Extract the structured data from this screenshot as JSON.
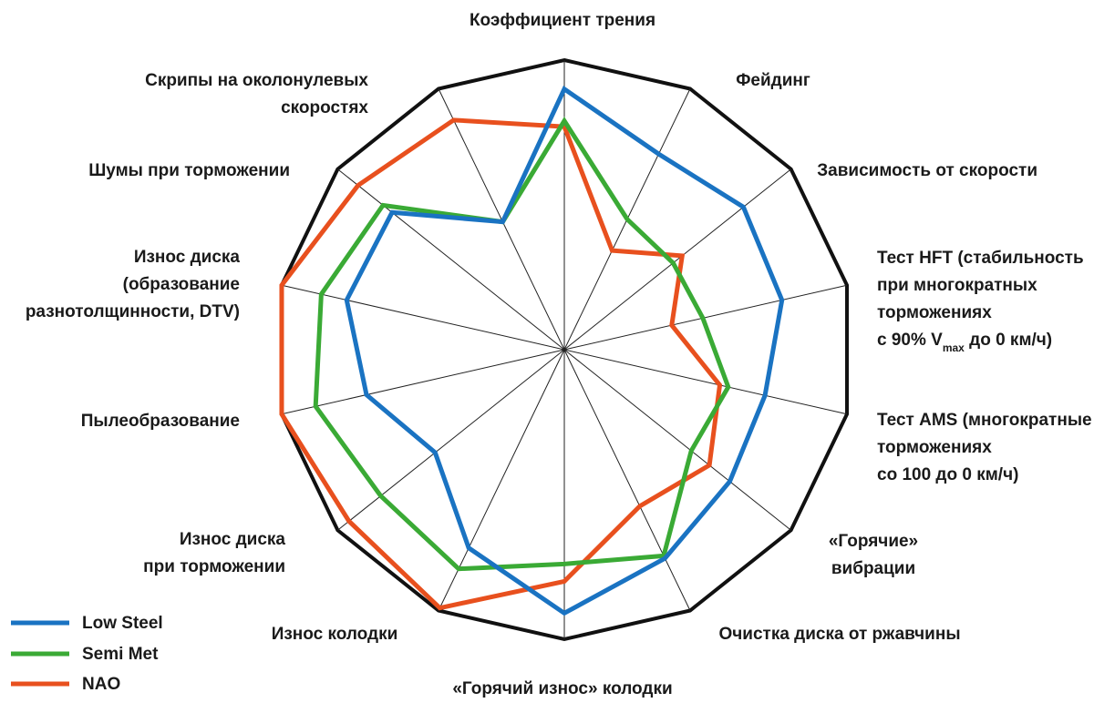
{
  "chart_data": {
    "type": "radar",
    "axes": [
      {
        "lines": [
          "Коэффициент трения"
        ]
      },
      {
        "lines": [
          "Фейдинг"
        ]
      },
      {
        "lines": [
          "Зависимость от скорости"
        ]
      },
      {
        "lines": [
          "Тест HFT (стабильность",
          "при многократных",
          "торможениях",
          "с 90% V|max| до 0 км/ч)"
        ]
      },
      {
        "lines": [
          "Тест AMS (многократные",
          "торможениях",
          "со 100 до 0 км/ч)"
        ]
      },
      {
        "lines": [
          "«Горячие»",
          "вибрации"
        ]
      },
      {
        "lines": [
          "Очистка диска от ржавчины"
        ]
      },
      {
        "lines": [
          "«Горячий износ» колодки"
        ]
      },
      {
        "lines": [
          "Износ колодки"
        ]
      },
      {
        "lines": [
          "Износ диска",
          "при торможении"
        ]
      },
      {
        "lines": [
          "Пылеобразование"
        ]
      },
      {
        "lines": [
          "Износ диска",
          "(образование",
          "разнотолщинности, DTV)"
        ]
      },
      {
        "lines": [
          "Шумы при торможении"
        ]
      },
      {
        "lines": [
          "Скрипы на околонулевых",
          "скоростях"
        ]
      }
    ],
    "series": [
      {
        "name": "Low Steel",
        "color": "#1a73c2",
        "values": [
          0.9,
          0.75,
          0.79,
          0.77,
          0.71,
          0.73,
          0.8,
          0.91,
          0.76,
          0.57,
          0.7,
          0.77,
          0.76,
          0.49
        ]
      },
      {
        "name": "Semi Met",
        "color": "#3aaa35",
        "values": [
          0.79,
          0.5,
          0.48,
          0.49,
          0.58,
          0.56,
          0.79,
          0.74,
          0.84,
          0.81,
          0.88,
          0.86,
          0.8,
          0.49
        ]
      },
      {
        "name": "NAO",
        "color": "#e8501e",
        "values": [
          0.77,
          0.38,
          0.52,
          0.38,
          0.55,
          0.64,
          0.6,
          0.8,
          0.99,
          0.95,
          1.0,
          1.0,
          0.91,
          0.88
        ]
      }
    ],
    "rmax": 1.0,
    "grid": "polygon outline with spokes",
    "legend_position": "bottom-left"
  }
}
